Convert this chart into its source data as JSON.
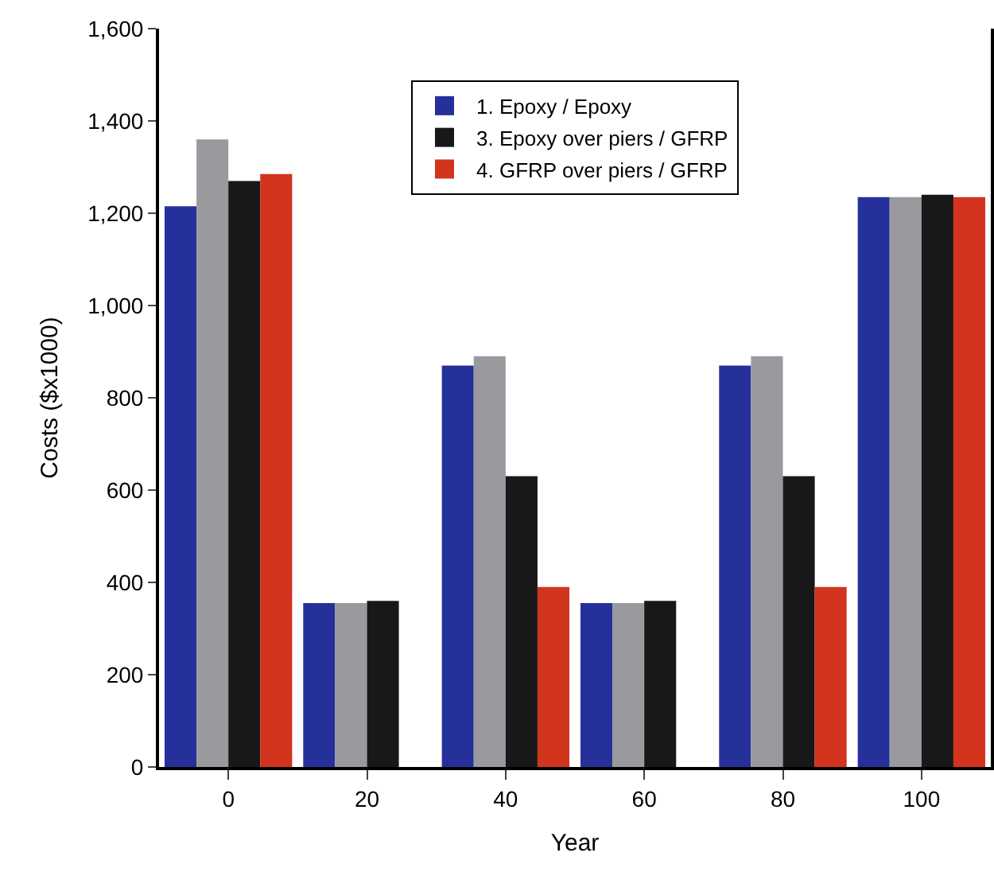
{
  "chart_data": {
    "type": "bar",
    "xlabel": "Year",
    "ylabel": "Costs ($x1000)",
    "categories": [
      "0",
      "20",
      "40",
      "60",
      "80",
      "100"
    ],
    "series": [
      {
        "name": "1. Epoxy / Epoxy",
        "color": "#26309a",
        "values": [
          1215,
          355,
          870,
          355,
          870,
          1235
        ]
      },
      {
        "color": "#9a9a9e",
        "values": [
          1360,
          355,
          890,
          355,
          890,
          1235
        ]
      },
      {
        "name": "3. Epoxy over piers / GFRP",
        "color": "#181818",
        "values": [
          1270,
          360,
          630,
          360,
          630,
          1240
        ]
      },
      {
        "name": "4. GFRP over piers / GFRP",
        "color": "#d2341e",
        "values": [
          1285,
          null,
          390,
          null,
          390,
          1235
        ]
      }
    ],
    "ylim": [
      0,
      1600
    ],
    "yticks": [
      {
        "value": 0,
        "label": "0"
      },
      {
        "value": 200,
        "label": "200"
      },
      {
        "value": 400,
        "label": "400"
      },
      {
        "value": 600,
        "label": "600"
      },
      {
        "value": 800,
        "label": "800"
      },
      {
        "value": 1000,
        "label": "1,000"
      },
      {
        "value": 1200,
        "label": "1,200"
      },
      {
        "value": 1400,
        "label": "1,400"
      },
      {
        "value": 1600,
        "label": "1,600"
      }
    ],
    "legend": "top"
  }
}
